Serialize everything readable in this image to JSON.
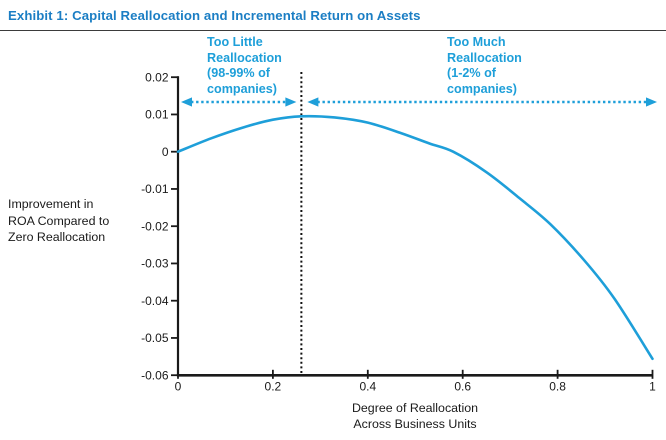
{
  "header": {
    "title": "Exhibit 1: Capital Reallocation and Incremental Return on Assets"
  },
  "annotations": {
    "too_little": "Too Little\nReallocation\n(98-99% of\ncompanies)",
    "too_much": "Too Much\nReallocation\n(1-2% of\ncompanies)"
  },
  "axis_titles": {
    "y": "Improvement in\nROA Compared to\nZero Reallocation",
    "x": "Degree of Reallocation\nAcross Business Units"
  },
  "colors": {
    "accent_blue": "#1E9FD9",
    "title_blue": "#1B7EC4",
    "rule_gray": "#3B3B3B",
    "axis_black": "#1a1a1a",
    "divider_black": "#111111"
  },
  "chart_data": {
    "type": "line",
    "title": "Capital Reallocation and Incremental Return on Assets",
    "xlabel": "Degree of Reallocation Across Business Units",
    "ylabel": "Improvement in ROA Compared to Zero Reallocation",
    "xlim": [
      0,
      1
    ],
    "ylim": [
      -0.06,
      0.02
    ],
    "grid": false,
    "legend": "none",
    "x_ticks": [
      "0",
      "0.2",
      "0.4",
      "0.6",
      "0.8",
      "1"
    ],
    "x_tick_values": [
      0,
      0.2,
      0.4,
      0.6,
      0.8,
      1
    ],
    "y_ticks": [
      "0.02",
      "0.01",
      "0",
      "-0.01",
      "-0.02",
      "-0.03",
      "-0.04",
      "-0.05",
      "-0.06"
    ],
    "y_tick_values": [
      0.02,
      0.01,
      0,
      -0.01,
      -0.02,
      -0.03,
      -0.04,
      -0.05,
      -0.06
    ],
    "series": [
      {
        "name": "Improvement in ROA vs degree of reallocation",
        "x": [
          0,
          0.07,
          0.14,
          0.2,
          0.26,
          0.33,
          0.4,
          0.47,
          0.53,
          0.58,
          0.65,
          0.72,
          0.785,
          0.855,
          0.92,
          1.0
        ],
        "y": [
          0,
          0.0036,
          0.0066,
          0.0086,
          0.0095,
          0.0092,
          0.0078,
          0.005,
          0.0022,
          0,
          -0.0055,
          -0.0125,
          -0.0195,
          -0.029,
          -0.0395,
          -0.0556
        ]
      }
    ],
    "peak": {
      "x": 0.26,
      "y": 0.0095
    },
    "divider_x": 0.26,
    "zones": [
      {
        "label": "Too Little Reallocation (98-99% of companies)",
        "from": 0,
        "to": 0.26
      },
      {
        "label": "Too Much Reallocation (1-2% of companies)",
        "from": 0.26,
        "to": 1
      }
    ]
  }
}
